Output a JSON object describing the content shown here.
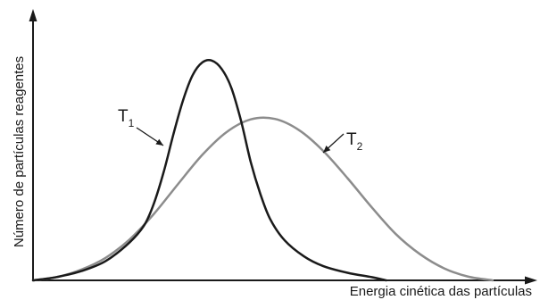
{
  "chart_data": {
    "type": "line",
    "xlabel": "Energia cinética das partículas",
    "ylabel": "Número de partículas reagentes",
    "xlim": [
      0,
      100
    ],
    "ylim": [
      0,
      100
    ],
    "grid": false,
    "legend": "none",
    "series": [
      {
        "name": "T1",
        "label_main": "T",
        "label_sub": "1",
        "color": "#1a1a1a",
        "points": [
          [
            0,
            0
          ],
          [
            5,
            1.4
          ],
          [
            10,
            3.8
          ],
          [
            15,
            7.9
          ],
          [
            20,
            15.6
          ],
          [
            23,
            22.6
          ],
          [
            25,
            31.5
          ],
          [
            27,
            44.2
          ],
          [
            29,
            59.6
          ],
          [
            31,
            73.5
          ],
          [
            33,
            83.9
          ],
          [
            35,
            89.1
          ],
          [
            37,
            89.8
          ],
          [
            39,
            86.4
          ],
          [
            41,
            78.7
          ],
          [
            43,
            65.2
          ],
          [
            45,
            48.4
          ],
          [
            47,
            35.3
          ],
          [
            49,
            25.1
          ],
          [
            52,
            16.4
          ],
          [
            56,
            9.8
          ],
          [
            60,
            5.8
          ],
          [
            65,
            3.1
          ],
          [
            70,
            1.3
          ],
          [
            73,
            0
          ]
        ]
      },
      {
        "name": "T2",
        "label_main": "T",
        "label_sub": "2",
        "color": "#8c8c8c",
        "points": [
          [
            0,
            0
          ],
          [
            5,
            1.4
          ],
          [
            10,
            4.4
          ],
          [
            15,
            9.2
          ],
          [
            20,
            16.8
          ],
          [
            25,
            27.2
          ],
          [
            30,
            39.4
          ],
          [
            35,
            51.3
          ],
          [
            40,
            60.6
          ],
          [
            45,
            65.8
          ],
          [
            50,
            66.0
          ],
          [
            55,
            61.4
          ],
          [
            60,
            52.9
          ],
          [
            65,
            41.8
          ],
          [
            70,
            29.9
          ],
          [
            75,
            18.9
          ],
          [
            80,
            10.7
          ],
          [
            85,
            4.9
          ],
          [
            90,
            1.5
          ],
          [
            95,
            0
          ]
        ]
      }
    ]
  }
}
